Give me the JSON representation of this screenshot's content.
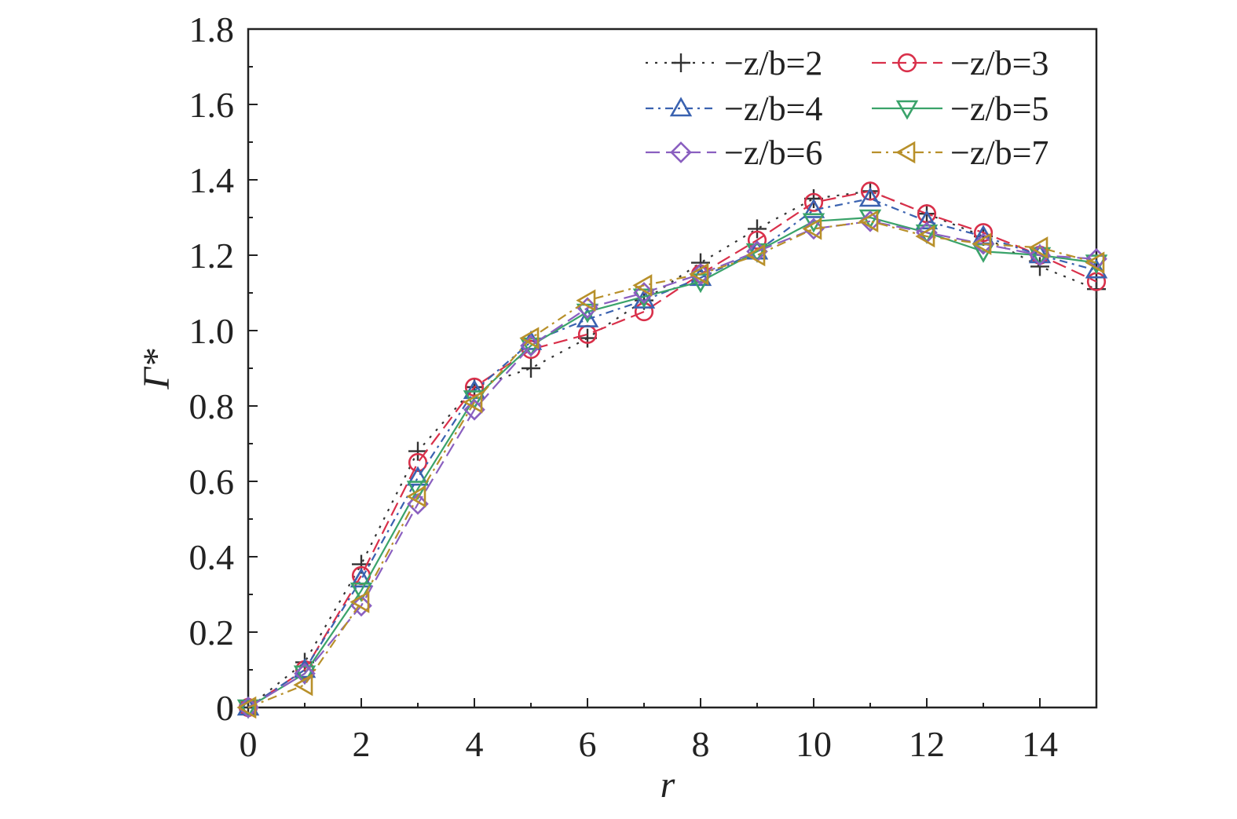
{
  "chart_data": {
    "type": "line",
    "title": "",
    "xlabel": "r",
    "ylabel": "Γ*",
    "xlim": [
      0,
      15
    ],
    "ylim": [
      0,
      1.8
    ],
    "xticks": [
      "0",
      "2",
      "4",
      "6",
      "8",
      "10",
      "12",
      "14"
    ],
    "yticks": [
      "0",
      "0.2",
      "0.4",
      "0.6",
      "0.8",
      "1.0",
      "1.2",
      "1.4",
      "1.6",
      "1.8"
    ],
    "grid": false,
    "legend_position": "top-right",
    "x": [
      0,
      1,
      2,
      3,
      4,
      5,
      6,
      7,
      8,
      9,
      10,
      11,
      12,
      13,
      14,
      15
    ],
    "series": [
      {
        "name": "−z/b=2",
        "marker": "plus",
        "dash": "dotted",
        "color": "#333333",
        "values": [
          0,
          0.12,
          0.38,
          0.68,
          0.85,
          0.9,
          0.98,
          1.08,
          1.18,
          1.27,
          1.35,
          1.37,
          1.31,
          1.25,
          1.17,
          1.11
        ]
      },
      {
        "name": "−z/b=3",
        "marker": "circle",
        "dash": "longdash",
        "color": "#d9304a",
        "values": [
          0,
          0.1,
          0.35,
          0.65,
          0.85,
          0.95,
          0.99,
          1.05,
          1.15,
          1.24,
          1.34,
          1.37,
          1.31,
          1.26,
          1.2,
          1.13
        ]
      },
      {
        "name": "−z/b=4",
        "marker": "triangle-up",
        "dash": "dashdot",
        "color": "#3a62b0",
        "values": [
          0,
          0.1,
          0.34,
          0.61,
          0.84,
          0.97,
          1.03,
          1.08,
          1.14,
          1.21,
          1.32,
          1.35,
          1.29,
          1.25,
          1.2,
          1.16
        ]
      },
      {
        "name": "−z/b=5",
        "marker": "triangle-down",
        "dash": "solid",
        "color": "#3aa36a",
        "values": [
          0,
          0.09,
          0.31,
          0.58,
          0.82,
          0.96,
          1.05,
          1.09,
          1.13,
          1.21,
          1.29,
          1.3,
          1.26,
          1.21,
          1.2,
          1.18
        ]
      },
      {
        "name": "−z/b=6",
        "marker": "diamond",
        "dash": "longdash",
        "color": "#8a5fc0",
        "values": [
          0,
          0.09,
          0.27,
          0.54,
          0.79,
          0.96,
          1.06,
          1.1,
          1.15,
          1.21,
          1.27,
          1.29,
          1.26,
          1.23,
          1.2,
          1.19
        ]
      },
      {
        "name": "−z/b=7",
        "marker": "triangle-left",
        "dash": "dashdotted",
        "color": "#b8902a",
        "values": [
          0,
          0.06,
          0.28,
          0.56,
          0.81,
          0.98,
          1.08,
          1.12,
          1.15,
          1.2,
          1.27,
          1.29,
          1.25,
          1.23,
          1.22,
          1.18
        ]
      }
    ]
  }
}
